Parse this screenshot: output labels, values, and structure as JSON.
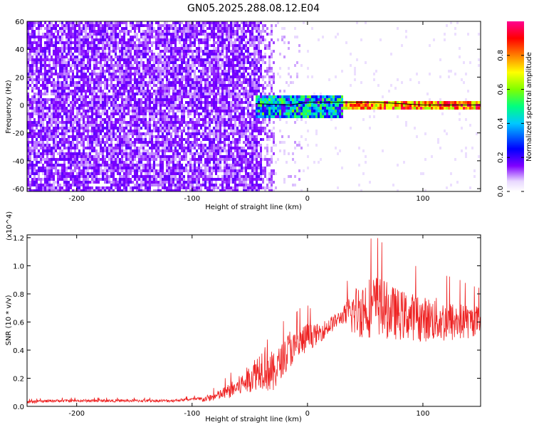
{
  "title": "GN05.2025.288.08.12.E04",
  "chart_data": [
    {
      "type": "heatmap",
      "xlabel": "Height of straight line (km)",
      "ylabel": "Frequency (Hz)",
      "xlim": [
        -243,
        150
      ],
      "ylim": [
        -62,
        60
      ],
      "xticks": [
        -200,
        -100,
        0,
        100
      ],
      "xtick_labels": [
        "-200",
        "-100",
        "0",
        "100"
      ],
      "yticks": [
        60,
        40,
        20,
        0,
        -20,
        -40,
        -60
      ],
      "ytick_labels": [
        "60",
        "40",
        "20",
        "0",
        "-20",
        "-40",
        "-60"
      ],
      "colorbar": {
        "label": "Normalized spectral amplitude",
        "range": [
          0,
          1
        ],
        "ticks": [
          0.0,
          0.2,
          0.4,
          0.6,
          0.8
        ],
        "tick_labels": [
          "0.0",
          "0.2",
          "0.4",
          "0.6",
          "0.8"
        ],
        "colors": [
          "#ffffff",
          "#8000ff",
          "#0000ff",
          "#00c0ff",
          "#00ff80",
          "#80ff00",
          "#ffff00",
          "#ff8000",
          "#ff0000",
          "#ff00a0"
        ]
      },
      "regions": [
        {
          "x_range": [
            -243,
            -35
          ],
          "freq_range": [
            -62,
            60
          ],
          "amplitude": 0.1,
          "description": "broadband noise"
        },
        {
          "x_range": [
            -45,
            30
          ],
          "freq_range": [
            -8,
            7
          ],
          "amplitude": 0.4
        },
        {
          "x_range": [
            30,
            150
          ],
          "freq_range": [
            -2,
            4
          ],
          "amplitude": 0.95
        }
      ],
      "line_frequency_hz": [
        [
          -45,
          1
        ],
        [
          -15,
          0
        ],
        [
          0,
          2
        ],
        [
          30,
          2
        ],
        [
          60,
          2
        ],
        [
          100,
          0
        ],
        [
          150,
          0
        ]
      ]
    },
    {
      "type": "line",
      "xlabel": "Height of straight line (km)",
      "ylabel": "SNR (10 * v/v)",
      "y_multiplier": "(x10^4)",
      "xlim": [
        -243,
        150
      ],
      "ylim": [
        0,
        1.22
      ],
      "xticks": [
        -200,
        -100,
        0,
        100
      ],
      "xtick_labels": [
        "-200",
        "-100",
        "0",
        "100"
      ],
      "yticks": [
        0.0,
        0.2,
        0.4,
        0.6,
        0.8,
        1.0,
        1.2
      ],
      "ytick_labels": [
        "0.0",
        "0.2",
        "0.4",
        "0.6",
        "0.8",
        "1.0",
        "1.2"
      ],
      "color": "#ee2222",
      "series": [
        {
          "x": [
            -243,
            -220,
            -200,
            -180,
            -160,
            -140,
            -120,
            -100,
            -90,
            -80,
            -70,
            -60,
            -50,
            -40,
            -35,
            -30,
            -25,
            -20,
            -15,
            -10,
            -5,
            0,
            5,
            10,
            20,
            30,
            40,
            50,
            60,
            70,
            80,
            90,
            100,
            110,
            120,
            130,
            140,
            150
          ],
          "y": [
            0.03,
            0.04,
            0.04,
            0.04,
            0.04,
            0.04,
            0.04,
            0.05,
            0.05,
            0.07,
            0.1,
            0.14,
            0.2,
            0.28,
            0.3,
            0.22,
            0.3,
            0.35,
            0.42,
            0.4,
            0.45,
            0.5,
            0.5,
            0.52,
            0.58,
            0.64,
            0.67,
            0.7,
            0.72,
            0.68,
            0.65,
            0.64,
            0.62,
            0.62,
            0.6,
            0.6,
            0.6,
            0.62
          ],
          "amp": [
            0.01,
            0.01,
            0.01,
            0.01,
            0.01,
            0.01,
            0.01,
            0.01,
            0.02,
            0.03,
            0.05,
            0.07,
            0.1,
            0.15,
            0.2,
            0.15,
            0.12,
            0.12,
            0.14,
            0.12,
            0.12,
            0.1,
            0.08,
            0.07,
            0.06,
            0.05,
            0.18,
            0.22,
            0.22,
            0.2,
            0.18,
            0.17,
            0.16,
            0.16,
            0.15,
            0.14,
            0.12,
            0.1
          ]
        }
      ]
    }
  ]
}
